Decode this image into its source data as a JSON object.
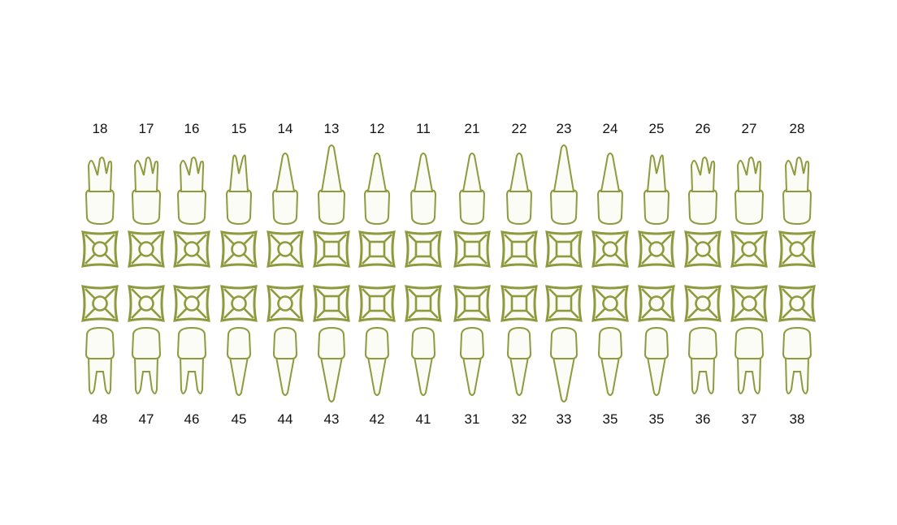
{
  "chart": {
    "outline_color": "#8f9a3f",
    "fill_color": "#fafcf5",
    "number_color": "#111111"
  },
  "upper_teeth": [
    {
      "number": "18",
      "root": "molar",
      "surface": "circle"
    },
    {
      "number": "17",
      "root": "molar",
      "surface": "circle"
    },
    {
      "number": "16",
      "root": "molar",
      "surface": "circle"
    },
    {
      "number": "15",
      "root": "premolar",
      "surface": "circle"
    },
    {
      "number": "14",
      "root": "single",
      "surface": "circle"
    },
    {
      "number": "13",
      "root": "canine",
      "surface": "square"
    },
    {
      "number": "12",
      "root": "single",
      "surface": "square"
    },
    {
      "number": "11",
      "root": "single",
      "surface": "square"
    },
    {
      "number": "21",
      "root": "single",
      "surface": "square"
    },
    {
      "number": "22",
      "root": "single",
      "surface": "square"
    },
    {
      "number": "23",
      "root": "canine",
      "surface": "square"
    },
    {
      "number": "24",
      "root": "single",
      "surface": "circle"
    },
    {
      "number": "25",
      "root": "premolar",
      "surface": "circle"
    },
    {
      "number": "26",
      "root": "molar",
      "surface": "circle"
    },
    {
      "number": "27",
      "root": "molar",
      "surface": "circle"
    },
    {
      "number": "28",
      "root": "molar",
      "surface": "circle"
    }
  ],
  "lower_teeth": [
    {
      "number": "48",
      "root": "molar",
      "surface": "circle"
    },
    {
      "number": "47",
      "root": "molar",
      "surface": "circle"
    },
    {
      "number": "46",
      "root": "molar",
      "surface": "circle"
    },
    {
      "number": "45",
      "root": "single",
      "surface": "circle"
    },
    {
      "number": "44",
      "root": "single",
      "surface": "circle"
    },
    {
      "number": "43",
      "root": "canine",
      "surface": "square"
    },
    {
      "number": "42",
      "root": "single",
      "surface": "square"
    },
    {
      "number": "41",
      "root": "single",
      "surface": "square"
    },
    {
      "number": "31",
      "root": "single",
      "surface": "square"
    },
    {
      "number": "32",
      "root": "single",
      "surface": "square"
    },
    {
      "number": "33",
      "root": "canine",
      "surface": "square"
    },
    {
      "number": "35",
      "root": "single",
      "surface": "circle"
    },
    {
      "number": "35",
      "root": "single",
      "surface": "circle"
    },
    {
      "number": "36",
      "root": "molar",
      "surface": "circle"
    },
    {
      "number": "37",
      "root": "molar",
      "surface": "circle"
    },
    {
      "number": "38",
      "root": "molar",
      "surface": "circle"
    }
  ]
}
